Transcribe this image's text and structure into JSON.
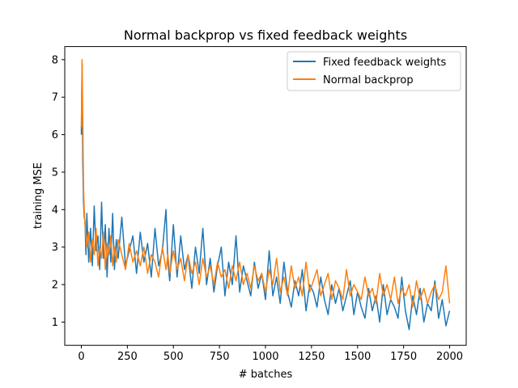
{
  "chart_data": {
    "type": "line",
    "title": "Normal backprop vs fixed feedback weights",
    "xlabel": "# batches",
    "ylabel": "training MSE",
    "xlim": [
      -90,
      2090
    ],
    "ylim": [
      0.38,
      8.35
    ],
    "xticks": [
      0,
      250,
      500,
      750,
      1000,
      1250,
      1500,
      1750,
      2000
    ],
    "yticks": [
      1,
      2,
      3,
      4,
      5,
      6,
      7,
      8
    ],
    "grid": false,
    "legend_position": "top-right",
    "series": [
      {
        "name": "Fixed feedback weights",
        "color": "#1f77b4",
        "x": [
          0,
          4,
          8,
          12,
          16,
          20,
          25,
          30,
          40,
          50,
          60,
          70,
          80,
          90,
          100,
          110,
          120,
          130,
          140,
          150,
          160,
          170,
          180,
          190,
          200,
          220,
          240,
          260,
          280,
          300,
          320,
          340,
          360,
          380,
          400,
          420,
          440,
          460,
          470,
          480,
          500,
          520,
          540,
          560,
          580,
          600,
          620,
          640,
          660,
          680,
          700,
          720,
          740,
          760,
          780,
          800,
          820,
          840,
          860,
          880,
          900,
          920,
          940,
          960,
          980,
          1000,
          1020,
          1040,
          1060,
          1080,
          1100,
          1120,
          1140,
          1160,
          1180,
          1200,
          1220,
          1240,
          1260,
          1280,
          1300,
          1320,
          1340,
          1360,
          1380,
          1400,
          1420,
          1440,
          1460,
          1480,
          1500,
          1520,
          1540,
          1560,
          1580,
          1600,
          1620,
          1640,
          1660,
          1680,
          1700,
          1720,
          1740,
          1760,
          1780,
          1800,
          1820,
          1840,
          1860,
          1880,
          1900,
          1920,
          1940,
          1960,
          1980,
          2000
        ],
        "y": [
          6.0,
          7.9,
          5.2,
          4.2,
          3.8,
          3.7,
          2.8,
          3.9,
          2.6,
          3.5,
          2.5,
          4.1,
          2.9,
          3.3,
          2.4,
          4.2,
          2.7,
          3.6,
          2.2,
          3.5,
          2.6,
          3.9,
          2.4,
          3.2,
          2.7,
          3.8,
          2.5,
          2.9,
          3.3,
          2.3,
          3.4,
          2.6,
          3.1,
          2.2,
          3.5,
          2.5,
          2.9,
          4.0,
          2.6,
          2.1,
          3.6,
          2.2,
          3.3,
          2.4,
          2.8,
          1.9,
          3.0,
          2.3,
          3.5,
          2.0,
          2.7,
          1.8,
          2.5,
          3.0,
          1.7,
          2.6,
          2.0,
          3.3,
          1.8,
          2.5,
          2.1,
          1.7,
          2.6,
          1.9,
          2.3,
          1.6,
          2.9,
          1.7,
          2.2,
          1.5,
          2.6,
          1.8,
          1.4,
          2.1,
          1.7,
          2.4,
          1.3,
          2.0,
          1.8,
          1.4,
          2.2,
          1.6,
          1.2,
          2.0,
          1.5,
          1.9,
          1.3,
          1.7,
          2.1,
          1.2,
          1.8,
          1.4,
          1.1,
          1.9,
          1.3,
          1.7,
          1.0,
          2.0,
          1.2,
          1.6,
          1.4,
          1.1,
          2.2,
          1.3,
          0.8,
          1.7,
          1.2,
          1.9,
          1.0,
          1.5,
          1.3,
          2.1,
          1.1,
          1.6,
          0.9,
          1.3
        ]
      },
      {
        "name": "Normal backprop",
        "color": "#ff7f0e",
        "x": [
          0,
          4,
          8,
          12,
          16,
          20,
          25,
          30,
          40,
          50,
          60,
          70,
          80,
          90,
          100,
          110,
          120,
          130,
          140,
          150,
          160,
          170,
          180,
          190,
          200,
          220,
          240,
          260,
          280,
          300,
          320,
          340,
          360,
          380,
          400,
          420,
          440,
          460,
          470,
          480,
          500,
          520,
          540,
          560,
          580,
          600,
          620,
          640,
          660,
          680,
          700,
          720,
          740,
          760,
          780,
          800,
          820,
          840,
          860,
          880,
          900,
          920,
          940,
          960,
          980,
          1000,
          1020,
          1040,
          1060,
          1080,
          1100,
          1120,
          1140,
          1160,
          1180,
          1200,
          1220,
          1240,
          1260,
          1280,
          1300,
          1320,
          1340,
          1360,
          1380,
          1400,
          1420,
          1440,
          1460,
          1480,
          1500,
          1520,
          1540,
          1560,
          1580,
          1600,
          1620,
          1640,
          1660,
          1680,
          1700,
          1720,
          1740,
          1760,
          1780,
          1800,
          1820,
          1840,
          1860,
          1880,
          1900,
          1920,
          1940,
          1960,
          1980,
          2000
        ],
        "y": [
          6.2,
          8.0,
          6.4,
          4.6,
          4.0,
          3.6,
          3.3,
          3.0,
          3.4,
          2.6,
          3.2,
          2.8,
          3.5,
          2.5,
          3.0,
          2.7,
          3.4,
          2.4,
          3.1,
          2.8,
          3.3,
          2.5,
          3.0,
          2.6,
          3.2,
          2.8,
          2.4,
          3.1,
          2.6,
          2.9,
          2.5,
          3.0,
          2.3,
          2.8,
          2.6,
          2.2,
          3.0,
          2.4,
          2.8,
          2.3,
          2.9,
          2.4,
          2.7,
          2.1,
          2.8,
          2.3,
          2.6,
          2.0,
          2.7,
          2.2,
          2.5,
          2.0,
          2.6,
          2.2,
          2.4,
          1.9,
          2.5,
          2.1,
          2.6,
          2.0,
          2.3,
          1.9,
          2.5,
          2.1,
          2.3,
          1.8,
          2.4,
          2.0,
          2.7,
          1.8,
          2.2,
          1.7,
          2.5,
          1.9,
          2.2,
          1.7,
          2.6,
          1.8,
          2.1,
          2.4,
          1.7,
          2.0,
          2.3,
          1.6,
          2.1,
          1.9,
          1.6,
          2.4,
          1.7,
          2.0,
          1.8,
          1.6,
          2.2,
          1.7,
          1.9,
          1.5,
          2.3,
          1.7,
          2.0,
          1.6,
          2.2,
          1.5,
          1.9,
          1.7,
          2.0,
          1.4,
          2.1,
          1.6,
          1.9,
          1.5,
          1.8,
          2.0,
          1.6,
          1.8,
          2.5,
          1.5
        ]
      }
    ]
  }
}
